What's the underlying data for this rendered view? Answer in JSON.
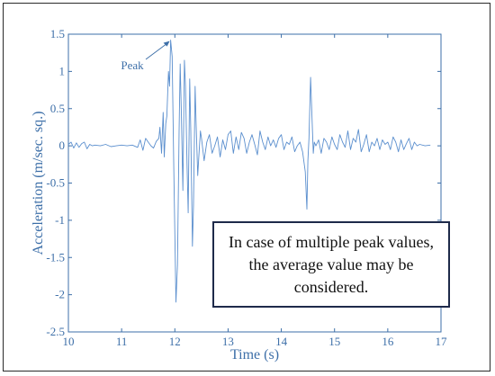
{
  "chart_data": {
    "type": "line",
    "xlabel": "Time (s)",
    "ylabel": "Acceleration (m/sec. sq.)",
    "xlim": [
      10,
      17
    ],
    "ylim": [
      -2.5,
      1.5
    ],
    "x_ticks": [
      10,
      11,
      12,
      13,
      14,
      15,
      16,
      17
    ],
    "y_ticks": [
      1.5,
      1,
      0.5,
      0,
      -0.5,
      -1,
      -1.5,
      -2,
      -2.5
    ],
    "grid": false,
    "series_color": "#5b8fce",
    "annotation": {
      "label": "Peak",
      "x": 11.92,
      "y": 1.42
    },
    "series": [
      {
        "x": [
          10.0,
          10.05,
          10.1,
          10.15,
          10.2,
          10.25,
          10.3,
          10.35,
          10.4,
          10.45,
          10.5,
          10.6,
          10.7,
          10.8,
          10.9,
          11.0,
          11.1,
          11.2,
          11.3,
          11.35,
          11.4,
          11.45,
          11.5,
          11.55,
          11.6,
          11.65,
          11.7,
          11.72,
          11.75,
          11.78,
          11.8,
          11.83,
          11.85,
          11.88,
          11.9,
          11.92,
          11.95,
          11.98,
          12.0,
          12.02,
          12.05,
          12.08,
          12.1,
          12.12,
          12.15,
          12.18,
          12.2,
          12.23,
          12.25,
          12.28,
          12.3,
          12.33,
          12.35,
          12.38,
          12.4,
          12.43,
          12.45,
          12.48,
          12.5,
          12.55,
          12.6,
          12.65,
          12.7,
          12.75,
          12.8,
          12.85,
          12.9,
          12.95,
          13.0,
          13.05,
          13.1,
          13.15,
          13.2,
          13.25,
          13.3,
          13.35,
          13.4,
          13.45,
          13.5,
          13.55,
          13.6,
          13.65,
          13.7,
          13.75,
          13.8,
          13.85,
          13.9,
          13.95,
          14.0,
          14.05,
          14.1,
          14.15,
          14.2,
          14.25,
          14.3,
          14.35,
          14.4,
          14.45,
          14.48,
          14.5,
          14.52,
          14.55,
          14.58,
          14.6,
          14.62,
          14.65,
          14.7,
          14.75,
          14.8,
          14.85,
          14.9,
          14.95,
          15.0,
          15.05,
          15.1,
          15.15,
          15.2,
          15.25,
          15.3,
          15.35,
          15.4,
          15.45,
          15.5,
          15.55,
          15.6,
          15.65,
          15.7,
          15.75,
          15.8,
          15.85,
          15.9,
          15.95,
          16.0,
          16.05,
          16.1,
          16.15,
          16.2,
          16.25,
          16.3,
          16.35,
          16.4,
          16.45,
          16.5,
          16.55,
          16.6,
          16.7,
          16.8
        ],
        "y": [
          0.02,
          0.05,
          -0.03,
          0.04,
          -0.02,
          0.03,
          0.05,
          -0.04,
          0.02,
          0.0,
          0.01,
          0.0,
          0.02,
          -0.01,
          0.0,
          0.01,
          0.0,
          0.01,
          -0.02,
          0.08,
          -0.06,
          0.1,
          0.05,
          0.0,
          -0.03,
          0.06,
          0.1,
          0.25,
          -0.1,
          0.45,
          -0.15,
          0.3,
          0.4,
          1.0,
          0.8,
          1.42,
          1.2,
          -0.3,
          -1.2,
          -2.1,
          -1.6,
          0.2,
          1.1,
          0.5,
          -0.6,
          1.15,
          0.8,
          -0.3,
          -0.9,
          0.9,
          0.2,
          -1.35,
          -0.8,
          0.8,
          0.3,
          -0.4,
          -0.15,
          0.2,
          0.1,
          -0.2,
          0.05,
          0.15,
          -0.1,
          0.0,
          0.12,
          -0.15,
          0.08,
          -0.05,
          0.15,
          0.2,
          -0.1,
          0.12,
          -0.05,
          0.18,
          0.1,
          -0.1,
          0.05,
          0.15,
          0.02,
          -0.12,
          0.2,
          0.05,
          -0.05,
          0.12,
          0.0,
          0.08,
          -0.02,
          0.1,
          0.15,
          -0.05,
          0.05,
          0.02,
          0.12,
          -0.08,
          0.0,
          0.05,
          -0.08,
          -0.35,
          -0.85,
          -0.2,
          0.1,
          0.92,
          0.3,
          -0.1,
          0.05,
          0.0,
          0.08,
          -0.1,
          0.1,
          0.05,
          -0.05,
          0.12,
          0.02,
          -0.05,
          0.15,
          0.05,
          -0.02,
          0.2,
          -0.05,
          0.1,
          0.05,
          0.22,
          -0.08,
          0.02,
          0.15,
          -0.08,
          0.05,
          0.0,
          0.1,
          -0.05,
          0.08,
          0.02,
          0.05,
          -0.05,
          0.12,
          0.05,
          -0.08,
          0.08,
          -0.05,
          0.03,
          0.1,
          -0.05,
          0.05,
          0.0,
          0.02,
          0.0,
          0.01
        ]
      }
    ]
  },
  "note": "In case of multiple peak values, the average value may be considered."
}
